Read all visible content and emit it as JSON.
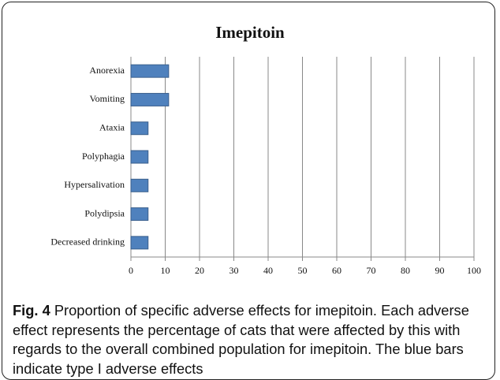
{
  "chart_data": {
    "type": "bar",
    "orientation": "horizontal",
    "title": "Imepitoin",
    "categories": [
      "Anorexia",
      "Vomiting",
      "Ataxia",
      "Polyphagia",
      "Hypersalivation",
      "Polydipsia",
      "Decreased drinking"
    ],
    "values": [
      11,
      11,
      5,
      5,
      5,
      5,
      5
    ],
    "color": "#4f81bd",
    "xlim": [
      0,
      100
    ],
    "xticks": [
      0,
      10,
      20,
      30,
      40,
      50,
      60,
      70,
      80,
      90,
      100
    ],
    "grid": true
  },
  "caption": {
    "label": "Fig. 4",
    "text": "Proportion of specific adverse effects for imepitoin. Each adverse effect represents the percentage of cats that were affected by this with regards to the overall combined population for imepitoin. The blue bars indicate type I adverse effects"
  }
}
